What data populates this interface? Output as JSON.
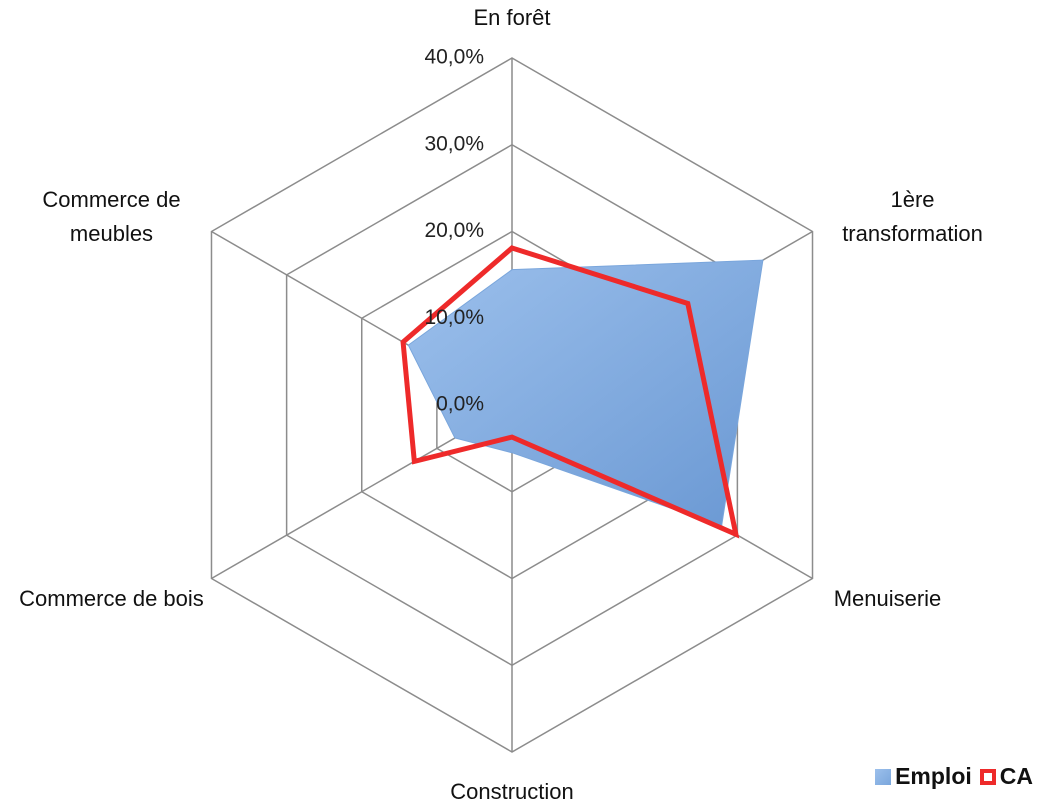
{
  "chart_data": {
    "type": "radar",
    "categories": [
      "En forêt",
      "1ère transformation",
      "Menuiserie",
      "Construction",
      "Commerce de bois",
      "Commerce de meubles"
    ],
    "series": [
      {
        "name": "Emploi",
        "color": "#7aa6dc",
        "values": [
          15.6,
          33.4,
          27.9,
          5.5,
          7.6,
          13.8
        ]
      },
      {
        "name": "CA",
        "color": "#ee2a2a",
        "values": [
          18.1,
          23.4,
          29.8,
          3.7,
          13.0,
          14.5
        ]
      }
    ],
    "ylim": [
      0,
      40
    ],
    "yticks": [
      {
        "value": 0,
        "label": "0,0%"
      },
      {
        "value": 10,
        "label": "10,0%"
      },
      {
        "value": 20,
        "label": "20,0%"
      },
      {
        "value": 30,
        "label": "30,0%"
      },
      {
        "value": 40,
        "label": "40,0%"
      }
    ],
    "grid": true
  }
}
